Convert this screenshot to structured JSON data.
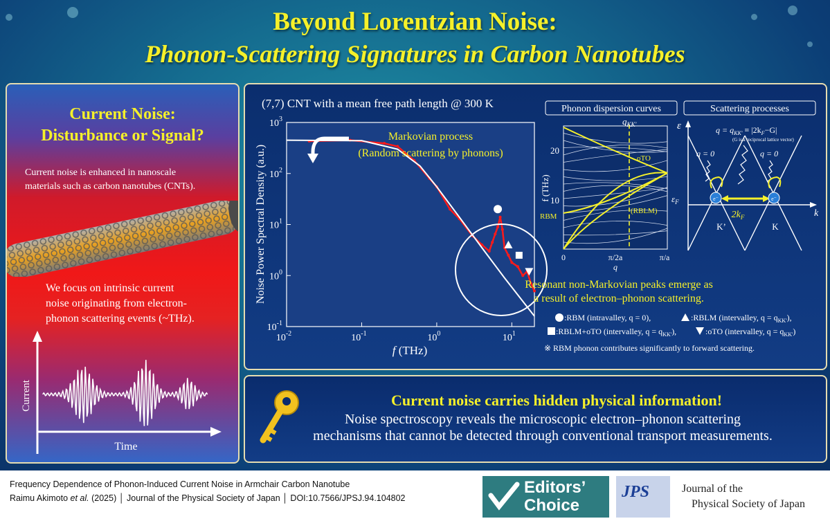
{
  "title": {
    "line1": "Beyond Lorentzian Noise:",
    "line2": "Phonon-Scattering Signatures in Carbon Nanotubes"
  },
  "left_panel": {
    "heading_line1": "Current Noise:",
    "heading_line2": "Disturbance or Signal?",
    "intro_line1": "Current noise is enhanced in nanoscale",
    "intro_line2": "materials such as carbon nanotubes (CNTs).",
    "focus_line1": "We focus on intrinsic current",
    "focus_line2": "noise originating from electron-",
    "focus_line3": "phonon scattering events (~THz).",
    "ylabel": "Current",
    "xlabel": "Time"
  },
  "main_panel": {
    "header": "(7,7) CNT with a mean free path length @ 300 K",
    "annotation_line1": "Markovian process",
    "annotation_line2": "(Random scattering by phonons)",
    "dispersion_title": "Phonon dispersion curves",
    "scattering_title": "Scattering processes",
    "result_line1": "Resonant non-Markovian peaks emerge as",
    "result_line2": "a result of electron–phonon scattering.",
    "legend_rbm": ":RBM (intravalley, q = 0),",
    "legend_rblm": ":RBLM (intervalley, q = q",
    "legend_rblm_oto": ":RBLM+oTO (intervalley, q = q",
    "legend_oto": ":oTO (intervalley, q = q",
    "legend_sub": "KK'",
    "legend_tail": "),",
    "legend_end": ")",
    "note": "※ RBM phonon contributes significantly to forward scattering."
  },
  "dispersion": {
    "ylabel": "f (THz)",
    "xlabel": "q",
    "ticks_y": [
      "20",
      "10"
    ],
    "ticks_x": [
      "0",
      "π/2a",
      "π/a"
    ],
    "labels": [
      "q",
      "KK'",
      "oTO",
      "(RBLM)",
      "RBM"
    ]
  },
  "scattering": {
    "axis_e": "ε",
    "axis_ef": "ε",
    "axis_ef_sub": "F",
    "axis_k": "k",
    "eq": "q = q",
    "eq_sub": "KK'",
    "eq_rest": " ≡ |2k",
    "eq_rest_sub": "F",
    "eq_end": "−G|",
    "eq_note": "(G is a reciprocal lattice vector)",
    "q0_left": "q = 0",
    "q0_right": "q = 0",
    "valley_left": "K’",
    "valley_right": "K",
    "two_kf": "2k",
    "two_kf_sub": "F",
    "electron": "e⁻"
  },
  "bottom_panel": {
    "headline": "Current noise carries hidden physical information!",
    "line1": "Noise spectroscopy reveals the microscopic electron–phonon scattering",
    "line2": "mechanisms that cannot be detected through conventional transport measurements."
  },
  "footer": {
    "paper_title": "Frequency Dependence of Phonon-Induced Current Noise in Armchair Carbon Nanotube",
    "authors": "Raimu Akimoto",
    "et_al": " et al.",
    "citation": " (2025) │ Journal of the Physical Society of Japan │ DOI:10.7566/JPSJ.94.104802",
    "badge_line1": "Editors’",
    "badge_line2": "Choice",
    "jps": "JPS",
    "journal_line1": "Journal of the",
    "journal_line2": "Physical Society of Japan"
  },
  "colors": {
    "title_yellow": "#f5f02a",
    "data_red": "#ff1a1a",
    "panel_blue": "#0b2e6e",
    "border": "#e6ddb0"
  },
  "chart_data": {
    "type": "line",
    "title": "",
    "xlabel": "f (THz)",
    "ylabel": "Noise Power Spectral Density (a.u.)",
    "x_scale": "log",
    "y_scale": "log",
    "xlim": [
      0.01,
      20
    ],
    "ylim": [
      0.1,
      1000
    ],
    "x_ticks": [
      "10-2",
      "10-1",
      "100",
      "101"
    ],
    "y_ticks": [
      "103",
      "102",
      "101",
      "100",
      "10-1"
    ],
    "series": [
      {
        "type": "line",
        "x": [
          0.01,
          0.1,
          0.3,
          0.6,
          1,
          2,
          4,
          8,
          20
        ],
        "y": [
          450,
          440,
          300,
          140,
          55,
          14,
          3.5,
          0.9,
          0.16
        ]
      },
      {
        "type": "scatter",
        "x": [
          0.02,
          0.07,
          0.2,
          0.3,
          0.5,
          0.8,
          1.0,
          1.5,
          2.0,
          3.0,
          4.0,
          5.0,
          5.5,
          6.0,
          6.5,
          7.0,
          7.5,
          8.0,
          9.0,
          10.0,
          12.0,
          14.0,
          16.0,
          18.0,
          20.0
        ],
        "y": [
          430,
          450,
          390,
          340,
          180,
          80,
          55,
          20,
          13,
          6,
          4,
          3,
          4.5,
          6.5,
          9,
          14,
          8,
          3.5,
          2.5,
          1.8,
          1.5,
          1.0,
          1.2,
          0.7,
          0.5
        ]
      }
    ],
    "markers": [
      {
        "symbol": "circle",
        "x": 6.5,
        "y": 20
      },
      {
        "symbol": "triangle",
        "x": 9,
        "y": 4
      },
      {
        "symbol": "square",
        "x": 12.5,
        "y": 2.5
      },
      {
        "symbol": "triangle-down",
        "x": 17,
        "y": 1.2
      }
    ]
  }
}
